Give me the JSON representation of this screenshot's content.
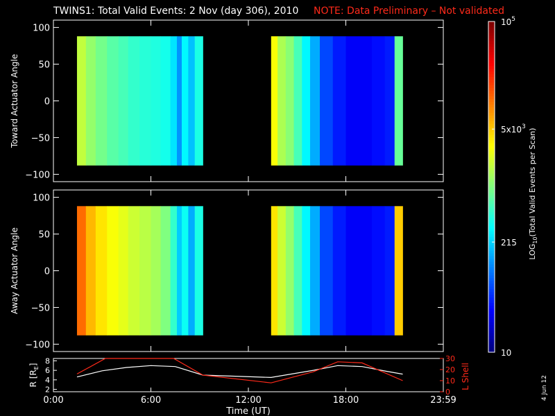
{
  "header": {
    "title": "TWINS1: Total Valid Events:  2 Nov (day 306), 2010",
    "note": "NOTE: Data Preliminary – Not validated"
  },
  "colors": {
    "background": "#000000",
    "axis": "#ffffff",
    "note": "#ff2a1a",
    "rshell_line": "#ffffff",
    "lshell_line": "#ff2a1a"
  },
  "colorbar": {
    "label_parts": [
      "LOG",
      "10",
      "(Total Valid Events per Scan)"
    ],
    "scale": "log",
    "range": [
      10,
      100000
    ],
    "ticks": [
      {
        "value": 10,
        "label": "10"
      },
      {
        "value": 215,
        "label": "215"
      },
      {
        "value": 5000,
        "label_base": "5x10",
        "label_exp": "3"
      },
      {
        "value": 100000,
        "label_base": "10",
        "label_exp": "5"
      }
    ]
  },
  "footer": {
    "date_stamp": "4 Jun 12"
  },
  "chart_data": [
    {
      "type": "heatmap",
      "ylabel": "Toward Actuator Angle",
      "ylim": [
        -110,
        110
      ],
      "yticks": [
        "100",
        "50",
        "0",
        "−50",
        "−100"
      ],
      "ytick_values": [
        100,
        50,
        0,
        -50,
        -100
      ],
      "angle_range": [
        -88,
        88
      ],
      "colorscale": "log10 counts (blue=low, red=high)",
      "blocks": [
        {
          "time_start_h": 1.45,
          "time_end_h": 9.2,
          "segments": [
            {
              "t": 1.45,
              "count": 1800
            },
            {
              "t": 2.0,
              "count": 1200
            },
            {
              "t": 2.6,
              "count": 900
            },
            {
              "t": 3.3,
              "count": 700
            },
            {
              "t": 4.0,
              "count": 600
            },
            {
              "t": 4.6,
              "count": 500
            },
            {
              "t": 5.3,
              "count": 450
            },
            {
              "t": 6.0,
              "count": 420
            },
            {
              "t": 6.6,
              "count": 380
            },
            {
              "t": 7.2,
              "count": 250
            },
            {
              "t": 7.6,
              "count": 120
            },
            {
              "t": 7.9,
              "count": 300
            },
            {
              "t": 8.3,
              "count": 180
            },
            {
              "t": 8.7,
              "count": 400
            }
          ]
        },
        {
          "time_start_h": 13.4,
          "time_end_h": 21.5,
          "segments": [
            {
              "t": 13.4,
              "count": 3000
            },
            {
              "t": 13.8,
              "count": 1500
            },
            {
              "t": 14.3,
              "count": 1100
            },
            {
              "t": 14.8,
              "count": 600
            },
            {
              "t": 15.3,
              "count": 300
            },
            {
              "t": 15.8,
              "count": 150
            },
            {
              "t": 16.4,
              "count": 60
            },
            {
              "t": 17.2,
              "count": 40
            },
            {
              "t": 18.0,
              "count": 30
            },
            {
              "t": 18.8,
              "count": 30
            },
            {
              "t": 19.6,
              "count": 35
            },
            {
              "t": 20.4,
              "count": 40
            },
            {
              "t": 21.0,
              "count": 800
            }
          ]
        }
      ]
    },
    {
      "type": "heatmap",
      "ylabel": "Away Actuator Angle",
      "ylim": [
        -110,
        110
      ],
      "yticks": [
        "100",
        "50",
        "0",
        "−50",
        "−100"
      ],
      "ytick_values": [
        100,
        50,
        0,
        -50,
        -100
      ],
      "angle_range": [
        -88,
        88
      ],
      "colorscale": "log10 counts (blue=low, red=high)",
      "blocks": [
        {
          "time_start_h": 1.45,
          "time_end_h": 9.2,
          "segments": [
            {
              "t": 1.45,
              "count": 12000
            },
            {
              "t": 2.0,
              "count": 6000
            },
            {
              "t": 2.6,
              "count": 4000
            },
            {
              "t": 3.3,
              "count": 3000
            },
            {
              "t": 4.0,
              "count": 2500
            },
            {
              "t": 4.6,
              "count": 2000
            },
            {
              "t": 5.3,
              "count": 1700
            },
            {
              "t": 6.0,
              "count": 1400
            },
            {
              "t": 6.6,
              "count": 1000
            },
            {
              "t": 7.2,
              "count": 500
            },
            {
              "t": 7.6,
              "count": 200
            },
            {
              "t": 7.9,
              "count": 350
            },
            {
              "t": 8.3,
              "count": 150
            },
            {
              "t": 8.7,
              "count": 400
            }
          ]
        },
        {
          "time_start_h": 13.4,
          "time_end_h": 21.5,
          "segments": [
            {
              "t": 13.4,
              "count": 4000
            },
            {
              "t": 13.8,
              "count": 2000
            },
            {
              "t": 14.3,
              "count": 1200
            },
            {
              "t": 14.8,
              "count": 600
            },
            {
              "t": 15.3,
              "count": 300
            },
            {
              "t": 15.8,
              "count": 150
            },
            {
              "t": 16.4,
              "count": 60
            },
            {
              "t": 17.2,
              "count": 40
            },
            {
              "t": 18.0,
              "count": 30
            },
            {
              "t": 18.8,
              "count": 30
            },
            {
              "t": 19.6,
              "count": 35
            },
            {
              "t": 20.4,
              "count": 40
            },
            {
              "t": 21.0,
              "count": 5000
            }
          ]
        }
      ]
    },
    {
      "type": "line",
      "xlabel": "Time (UT)",
      "xlim": [
        0,
        24
      ],
      "xticks": [
        "0:00",
        "6:00",
        "12:00",
        "18:00",
        "23:59"
      ],
      "xtick_values": [
        0,
        6,
        12,
        18,
        24
      ],
      "ylabel_left": "R [RE]",
      "ylabel_left_base": "R [R",
      "ylabel_left_sub": "E",
      "ylabel_left_close": "]",
      "ylim_left": [
        1.5,
        8.5
      ],
      "yticks_left": [
        "2",
        "4",
        "6",
        "8"
      ],
      "ylabel_right": "L Shell",
      "ylim_right": [
        0,
        30
      ],
      "yticks_right": [
        "0",
        "10",
        "20",
        "30"
      ],
      "series": [
        {
          "name": "R [RE]",
          "axis": "left",
          "x": [
            1.45,
            3,
            4.5,
            6,
            7.5,
            9.2,
            13.4,
            16,
            17.5,
            19,
            20.5,
            21.5
          ],
          "y": [
            4.6,
            5.9,
            6.6,
            7.0,
            6.8,
            5.0,
            4.5,
            6.0,
            7.0,
            6.8,
            5.8,
            5.2
          ]
        },
        {
          "name": "L Shell",
          "axis": "right",
          "x": [
            1.45,
            3.2,
            7.4,
            9.2,
            13.4,
            16,
            17.5,
            19,
            21.5
          ],
          "y": [
            16,
            30,
            30,
            15,
            8,
            18,
            27,
            26,
            10
          ]
        }
      ]
    }
  ]
}
